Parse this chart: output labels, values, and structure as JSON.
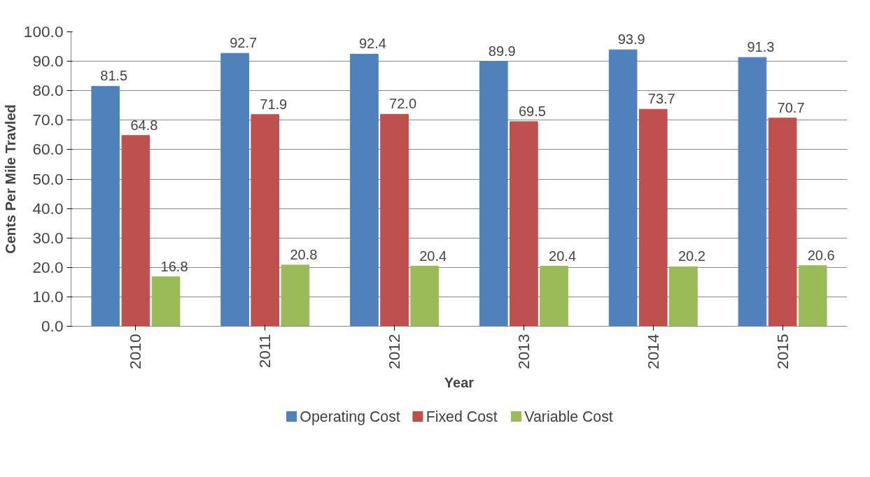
{
  "chart_data": {
    "type": "bar",
    "xlabel": "Year",
    "ylabel": "Cents Per Mile Travled",
    "categories": [
      "2010",
      "2011",
      "2012",
      "2013",
      "2014",
      "2015"
    ],
    "series": [
      {
        "name": "Operating Cost",
        "color": "#4f81bd",
        "values": [
          81.5,
          92.7,
          92.4,
          89.9,
          93.9,
          91.3
        ],
        "value_labels": [
          "81.5",
          "92.7",
          "92.4",
          "89.9",
          "93.9",
          "91.3"
        ]
      },
      {
        "name": "Fixed Cost",
        "color": "#c0504d",
        "values": [
          64.8,
          71.9,
          72.0,
          69.5,
          73.7,
          70.7
        ],
        "value_labels": [
          "64.8",
          "71.9",
          "72.0",
          "69.5",
          "73.7",
          "70.7"
        ]
      },
      {
        "name": "Variable Cost",
        "color": "#9bbb59",
        "values": [
          16.8,
          20.8,
          20.4,
          20.4,
          20.2,
          20.6
        ],
        "value_labels": [
          "16.8",
          "20.8",
          "20.4",
          "20.4",
          "20.2",
          "20.6"
        ]
      }
    ],
    "ylim": [
      0,
      100
    ],
    "yticks": [
      {
        "value": 0,
        "label": "0.0"
      },
      {
        "value": 10,
        "label": "10.0"
      },
      {
        "value": 20,
        "label": "20.0"
      },
      {
        "value": 30,
        "label": "30.0"
      },
      {
        "value": 40,
        "label": "40.0"
      },
      {
        "value": 50,
        "label": "50.0"
      },
      {
        "value": 60,
        "label": "60.0"
      },
      {
        "value": 70,
        "label": "70.0"
      },
      {
        "value": 80,
        "label": "80.0"
      },
      {
        "value": 90,
        "label": "90.0"
      },
      {
        "value": 100,
        "label": "100.0"
      }
    ],
    "grid": "y",
    "legend": "bottom"
  }
}
